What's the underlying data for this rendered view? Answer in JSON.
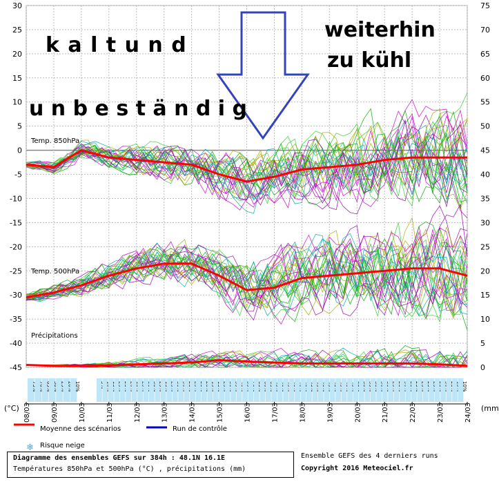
{
  "chart_data": {
    "type": "line",
    "title": "Diagramme des ensembles GEFS sur 384h : 48.1N 16.1E",
    "subtitle": "Températures 850hPa et 500hPa (°C) , précipitations (mm)",
    "left_axis": {
      "unit": "(°C)",
      "ylim": [
        -45,
        30
      ],
      "ticks": [
        30,
        25,
        20,
        15,
        10,
        5,
        0,
        -5,
        -10,
        -15,
        -20,
        -25,
        -30,
        -35,
        -40,
        -45
      ]
    },
    "right_axis": {
      "unit": "(mm)",
      "ylim": [
        0,
        75
      ],
      "ticks": [
        75,
        70,
        65,
        60,
        55,
        50,
        45,
        40,
        35,
        30,
        25,
        20,
        15,
        10,
        5,
        0
      ]
    },
    "x_dates": [
      "08/03",
      "09/03",
      "10/03",
      "11/03",
      "12/03",
      "13/03",
      "14/03",
      "15/03",
      "16/03",
      "17/03",
      "18/03",
      "19/03",
      "20/03",
      "21/03",
      "22/03",
      "23/03",
      "24/03"
    ],
    "panel_labels": {
      "t850": "Temp. 850hPa",
      "t500": "Temp. 500hPa",
      "precip": "Précipitations"
    },
    "series": [
      {
        "name": "Moyenne des scénarios",
        "panel": "Temp. 850hPa",
        "x": [
          "08/03",
          "09/03",
          "10/03",
          "11/03",
          "12/03",
          "13/03",
          "14/03",
          "15/03",
          "16/03",
          "17/03",
          "18/03",
          "19/03",
          "20/03",
          "21/03",
          "22/03",
          "23/03",
          "24/03"
        ],
        "y": [
          -3,
          -3.5,
          0,
          -1.5,
          -2,
          -2.5,
          -3,
          -5,
          -6.5,
          -5.5,
          -4,
          -3.5,
          -3,
          -2,
          -1.5,
          -1.5,
          -1.5
        ]
      },
      {
        "name": "Moyenne des scénarios",
        "panel": "Temp. 500hPa",
        "x": [
          "08/03",
          "09/03",
          "10/03",
          "11/03",
          "12/03",
          "13/03",
          "14/03",
          "15/03",
          "16/03",
          "17/03",
          "18/03",
          "19/03",
          "20/03",
          "21/03",
          "22/03",
          "23/03",
          "24/03"
        ],
        "y": [
          -30.5,
          -29.5,
          -28,
          -26,
          -24.5,
          -23.5,
          -23.5,
          -26,
          -29,
          -28.5,
          -26.5,
          -26,
          -25.5,
          -25,
          -24.5,
          -24.5,
          -26
        ]
      },
      {
        "name": "Moyenne des scénarios",
        "panel": "Précipitations",
        "x": [
          "08/03",
          "09/03",
          "10/03",
          "11/03",
          "12/03",
          "13/03",
          "14/03",
          "15/03",
          "16/03",
          "17/03",
          "18/03",
          "19/03",
          "20/03",
          "21/03",
          "22/03",
          "23/03",
          "24/03"
        ],
        "y": [
          0.5,
          0.3,
          0.3,
          0.4,
          0.6,
          0.8,
          1,
          1.5,
          1.2,
          1,
          0.8,
          0.8,
          0.8,
          0.8,
          0.8,
          0.6,
          0.3
        ]
      }
    ],
    "snow_risk_percent_labels": [
      [
        "75%",
        "70%",
        "65%",
        "30%",
        "25%",
        "20%",
        "10%"
      ],
      [
        "5%",
        "10%",
        "15%",
        "25%",
        "25%",
        "20%",
        "15%",
        "25%",
        "30%",
        "30%",
        "25%",
        "15%",
        "25%",
        "30%",
        "30%",
        "25%",
        "25%",
        "25%",
        "20%",
        "15%",
        "15%",
        "25%",
        "30%",
        "35%",
        "40%",
        "55%",
        "70%",
        "65%",
        "60%",
        "65%",
        "45%",
        "40%",
        "45%",
        "40%",
        "40%",
        "45%",
        "45%",
        "45%",
        "40%",
        "45%",
        "45%",
        "45%",
        "40%",
        "45%",
        "35%",
        "30%",
        "35%",
        "30%",
        "30%",
        "30%",
        "25%",
        "25%",
        "30%",
        "25%",
        "25%",
        "25%",
        "25%",
        "25%",
        "25%",
        "30%",
        "25%",
        "15%",
        "10%"
      ]
    ]
  },
  "overlay_text": {
    "line1": "k a l t   u n d",
    "line2": "u n b e s t ä n d i g",
    "line3": "weiterhin",
    "line4": "zu  kühl"
  },
  "legend": {
    "mean_label": "Moyenne des scénarios",
    "control_label": "Run de contrôle",
    "snow_label": "Risque neige",
    "mean_color": "#ff0000",
    "control_color": "#0000cc"
  },
  "footer": {
    "line1": "Diagramme des ensembles GEFS sur 384h : 48.1N 16.1E",
    "line2": "Températures 850hPa et 500hPa (°C) , précipitations (mm)",
    "right1": "Ensemble GEFS des 4 derniers runs",
    "right2": "Copyright 2016 Meteociel.fr"
  },
  "colors": {
    "grid": "#bbbbbb",
    "arrow": "#3344bb",
    "zero_line": "#888888",
    "members": [
      "#00aa00",
      "#cc00cc",
      "#00aaaa",
      "#aaaa00",
      "#33cc33",
      "#9900aa"
    ]
  }
}
